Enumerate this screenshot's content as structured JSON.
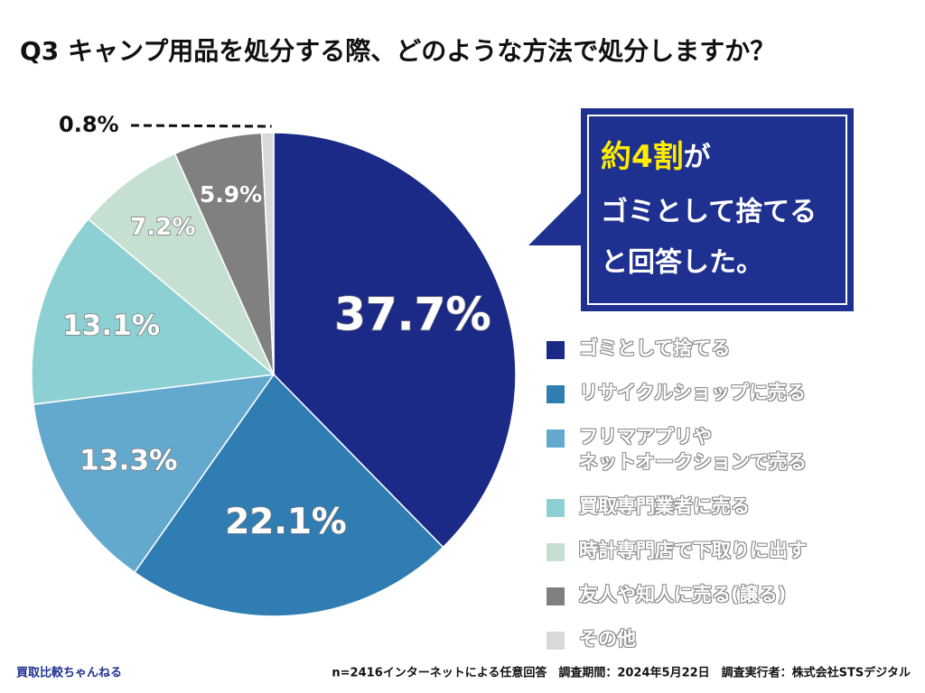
{
  "chart_data": {
    "type": "pie",
    "title": "Q3 キャンプ用品を処分する際、どのような方法で処分しますか？",
    "categories": [
      "ゴミとして捨てる",
      "リサイクルショップに売る",
      "フリマアプリや\nネットオークションで売る",
      "買取専門業者に売る",
      "時計専門店で下取りに出す",
      "友人や知人に売る(譲る)",
      "その他"
    ],
    "values": [
      37.7,
      22.1,
      13.3,
      13.1,
      7.2,
      5.9,
      0.8
    ],
    "value_labels": [
      "37.7%",
      "22.1%",
      "13.3%",
      "13.1%",
      "7.2%",
      "5.9%",
      "0.8%"
    ],
    "colors": [
      "#1b2a87",
      "#2f7db3",
      "#63a9cd",
      "#8dd0d4",
      "#c5e0d0",
      "#808080",
      "#d9d9d9"
    ],
    "annotation": {
      "parts": [
        "約4割",
        "が",
        "ゴミとして捨てる",
        "と回答した。"
      ]
    },
    "footer": {
      "source": "買取比較ちゃんねる",
      "note": "n=2416インターネットによる任意回答　調査期間：2024年5月22日　調査実行者：株式会社STSデジタル"
    }
  }
}
